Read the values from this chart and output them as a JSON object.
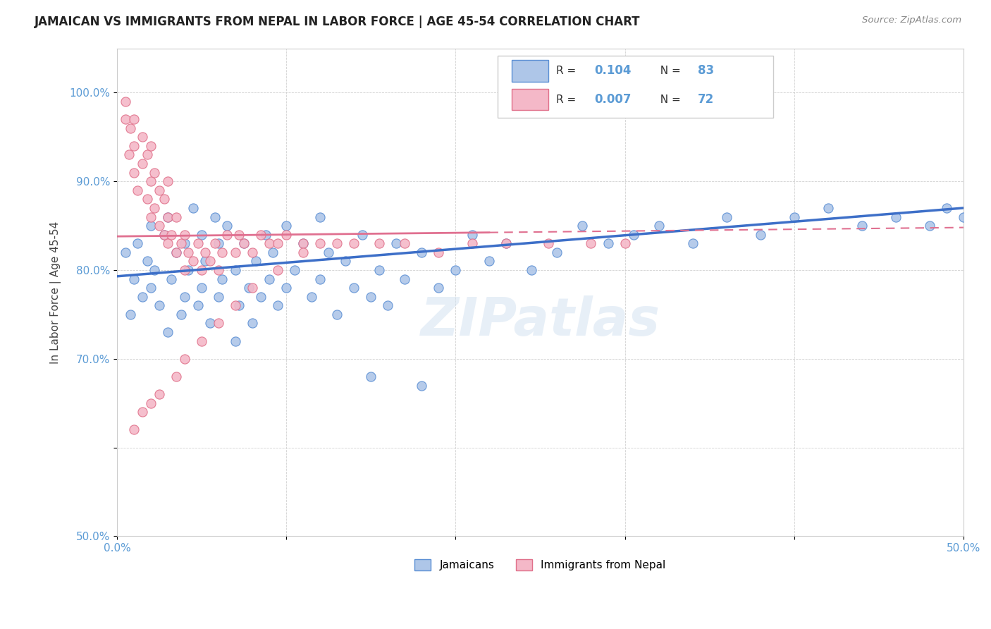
{
  "title": "JAMAICAN VS IMMIGRANTS FROM NEPAL IN LABOR FORCE | AGE 45-54 CORRELATION CHART",
  "source_text": "Source: ZipAtlas.com",
  "ylabel": "In Labor Force | Age 45-54",
  "xlim": [
    0.0,
    0.5
  ],
  "ylim": [
    0.5,
    1.05
  ],
  "xticks": [
    0.0,
    0.1,
    0.2,
    0.3,
    0.4,
    0.5
  ],
  "xticklabels": [
    "0.0%",
    "",
    "",
    "",
    "",
    "50.0%"
  ],
  "yticks": [
    0.5,
    0.6,
    0.7,
    0.8,
    0.9,
    1.0
  ],
  "yticklabels": [
    "50.0%",
    "",
    "70.0%",
    "80.0%",
    "90.0%",
    "100.0%"
  ],
  "blue_R": 0.104,
  "blue_N": 83,
  "pink_R": 0.007,
  "pink_N": 72,
  "blue_color": "#aec6e8",
  "pink_color": "#f4b8c8",
  "blue_edge_color": "#5b8fd4",
  "pink_edge_color": "#e0708a",
  "blue_line_color": "#3d6fc8",
  "pink_line_color": "#e07090",
  "watermark": "ZIPatlas",
  "legend_labels": [
    "Jamaicans",
    "Immigrants from Nepal"
  ],
  "blue_scatter_x": [
    0.005,
    0.008,
    0.01,
    0.012,
    0.015,
    0.018,
    0.02,
    0.02,
    0.022,
    0.025,
    0.028,
    0.03,
    0.03,
    0.032,
    0.035,
    0.038,
    0.04,
    0.04,
    0.042,
    0.045,
    0.048,
    0.05,
    0.05,
    0.052,
    0.055,
    0.058,
    0.06,
    0.06,
    0.062,
    0.065,
    0.07,
    0.07,
    0.072,
    0.075,
    0.078,
    0.08,
    0.082,
    0.085,
    0.088,
    0.09,
    0.092,
    0.095,
    0.1,
    0.1,
    0.105,
    0.11,
    0.115,
    0.12,
    0.12,
    0.125,
    0.13,
    0.135,
    0.14,
    0.145,
    0.15,
    0.155,
    0.16,
    0.165,
    0.17,
    0.18,
    0.19,
    0.2,
    0.21,
    0.22,
    0.23,
    0.245,
    0.26,
    0.275,
    0.29,
    0.305,
    0.32,
    0.34,
    0.36,
    0.38,
    0.4,
    0.42,
    0.44,
    0.46,
    0.48,
    0.49,
    0.5,
    0.15,
    0.18
  ],
  "blue_scatter_y": [
    0.82,
    0.75,
    0.79,
    0.83,
    0.77,
    0.81,
    0.78,
    0.85,
    0.8,
    0.76,
    0.84,
    0.73,
    0.86,
    0.79,
    0.82,
    0.75,
    0.77,
    0.83,
    0.8,
    0.87,
    0.76,
    0.78,
    0.84,
    0.81,
    0.74,
    0.86,
    0.77,
    0.83,
    0.79,
    0.85,
    0.72,
    0.8,
    0.76,
    0.83,
    0.78,
    0.74,
    0.81,
    0.77,
    0.84,
    0.79,
    0.82,
    0.76,
    0.78,
    0.85,
    0.8,
    0.83,
    0.77,
    0.79,
    0.86,
    0.82,
    0.75,
    0.81,
    0.78,
    0.84,
    0.77,
    0.8,
    0.76,
    0.83,
    0.79,
    0.82,
    0.78,
    0.8,
    0.84,
    0.81,
    0.83,
    0.8,
    0.82,
    0.85,
    0.83,
    0.84,
    0.85,
    0.83,
    0.86,
    0.84,
    0.86,
    0.87,
    0.85,
    0.86,
    0.85,
    0.87,
    0.86,
    0.68,
    0.67
  ],
  "pink_scatter_x": [
    0.005,
    0.005,
    0.007,
    0.008,
    0.01,
    0.01,
    0.01,
    0.012,
    0.015,
    0.015,
    0.018,
    0.018,
    0.02,
    0.02,
    0.02,
    0.022,
    0.022,
    0.025,
    0.025,
    0.028,
    0.028,
    0.03,
    0.03,
    0.03,
    0.032,
    0.035,
    0.035,
    0.038,
    0.04,
    0.04,
    0.042,
    0.045,
    0.048,
    0.05,
    0.052,
    0.055,
    0.058,
    0.06,
    0.062,
    0.065,
    0.07,
    0.072,
    0.075,
    0.08,
    0.085,
    0.09,
    0.095,
    0.1,
    0.11,
    0.12,
    0.13,
    0.14,
    0.155,
    0.17,
    0.19,
    0.21,
    0.23,
    0.255,
    0.28,
    0.3,
    0.01,
    0.015,
    0.02,
    0.025,
    0.035,
    0.04,
    0.05,
    0.06,
    0.07,
    0.08,
    0.095,
    0.11
  ],
  "pink_scatter_y": [
    0.97,
    0.99,
    0.93,
    0.96,
    0.91,
    0.94,
    0.97,
    0.89,
    0.92,
    0.95,
    0.88,
    0.93,
    0.86,
    0.9,
    0.94,
    0.87,
    0.91,
    0.85,
    0.89,
    0.84,
    0.88,
    0.83,
    0.86,
    0.9,
    0.84,
    0.82,
    0.86,
    0.83,
    0.8,
    0.84,
    0.82,
    0.81,
    0.83,
    0.8,
    0.82,
    0.81,
    0.83,
    0.8,
    0.82,
    0.84,
    0.82,
    0.84,
    0.83,
    0.82,
    0.84,
    0.83,
    0.83,
    0.84,
    0.83,
    0.83,
    0.83,
    0.83,
    0.83,
    0.83,
    0.82,
    0.83,
    0.83,
    0.83,
    0.83,
    0.83,
    0.62,
    0.64,
    0.65,
    0.66,
    0.68,
    0.7,
    0.72,
    0.74,
    0.76,
    0.78,
    0.8,
    0.82
  ]
}
